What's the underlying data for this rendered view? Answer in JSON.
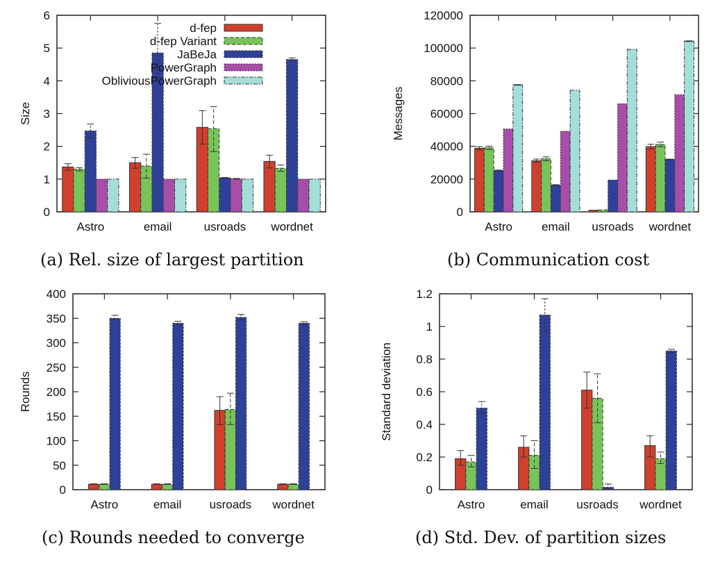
{
  "series_names": [
    "d-fep",
    "d-fep Variant",
    "JaBeJa",
    "PowerGraph",
    "ObliviousPowerGraph"
  ],
  "series_colors": [
    "#d0402c",
    "#78c45a",
    "#2f4098",
    "#a64ea8",
    "#a4ded8"
  ],
  "captions": {
    "a": "(a) Rel. size of largest partition",
    "b": "(b) Communication cost",
    "c": "(c) Rounds needed to converge",
    "d": "(d) Std. Dev. of partition sizes"
  },
  "chart_data": [
    {
      "id": "a",
      "type": "bar",
      "title": "Rel. size of largest partition",
      "xlabel": "",
      "ylabel": "Size",
      "ylim": [
        0,
        6
      ],
      "yticks": [
        0,
        1,
        2,
        3,
        4,
        5,
        6
      ],
      "ytick_labels": [
        "0",
        "1",
        "2",
        "3",
        "4",
        "5",
        "6"
      ],
      "categories": [
        "Astro",
        "email",
        "usroads",
        "wordnet"
      ],
      "legend": "top-right",
      "grid": false,
      "series": [
        {
          "name": "d-fep",
          "values": [
            1.37,
            1.5,
            2.58,
            1.54
          ],
          "err_low": [
            1.27,
            1.33,
            2.07,
            1.34
          ],
          "err_high": [
            1.47,
            1.66,
            3.09,
            1.73
          ]
        },
        {
          "name": "d-fep Variant",
          "values": [
            1.3,
            1.4,
            2.54,
            1.33
          ],
          "err_low": [
            1.25,
            1.03,
            1.84,
            1.24
          ],
          "err_high": [
            1.35,
            1.76,
            3.21,
            1.43
          ]
        },
        {
          "name": "JaBeJa",
          "values": [
            2.47,
            4.85,
            1.04,
            4.65
          ],
          "err_low": [
            2.25,
            4.1,
            1.03,
            4.62
          ],
          "err_high": [
            2.68,
            5.75,
            1.05,
            4.7
          ]
        },
        {
          "name": "PowerGraph",
          "values": [
            1.0,
            1.0,
            1.01,
            1.0
          ],
          "err_low": [
            1.0,
            1.0,
            1.0,
            1.0
          ],
          "err_high": [
            1.0,
            1.0,
            1.02,
            1.0
          ]
        },
        {
          "name": "ObliviousPowerGraph",
          "values": [
            1.0,
            1.0,
            1.0,
            1.0
          ],
          "err_low": [
            1.0,
            1.0,
            1.0,
            1.0
          ],
          "err_high": [
            1.0,
            1.0,
            1.0,
            1.0
          ]
        }
      ]
    },
    {
      "id": "b",
      "type": "bar",
      "title": "Communication cost",
      "xlabel": "",
      "ylabel": "Messages",
      "ylim": [
        0,
        120000
      ],
      "yticks": [
        0,
        20000,
        40000,
        60000,
        80000,
        100000,
        120000
      ],
      "ytick_labels": [
        "0",
        "20000",
        "40000",
        "60000",
        "80000",
        "100000",
        "120000"
      ],
      "categories": [
        "Astro",
        "email",
        "usroads",
        "wordnet"
      ],
      "legend": "none",
      "grid": false,
      "series": [
        {
          "name": "d-fep",
          "values": [
            38800,
            31200,
            1000,
            39800
          ],
          "err_low": [
            37800,
            30200,
            900,
            38300
          ],
          "err_high": [
            39800,
            32200,
            1100,
            41300
          ]
        },
        {
          "name": "d-fep Variant",
          "values": [
            39100,
            32400,
            1200,
            41200
          ],
          "err_low": [
            38100,
            31200,
            1100,
            39800
          ],
          "err_high": [
            40100,
            33600,
            1300,
            42600
          ]
        },
        {
          "name": "JaBeJa",
          "values": [
            25300,
            16300,
            19400,
            32000
          ],
          "err_low": [
            25100,
            16000,
            19300,
            31800
          ],
          "err_high": [
            25500,
            16600,
            19500,
            32200
          ]
        },
        {
          "name": "PowerGraph",
          "values": [
            50600,
            49200,
            66000,
            71500
          ],
          "err_low": [
            50500,
            49100,
            65900,
            71400
          ],
          "err_high": [
            50700,
            49300,
            66100,
            71600
          ]
        },
        {
          "name": "ObliviousPowerGraph",
          "values": [
            77500,
            74200,
            99200,
            104200
          ],
          "err_low": [
            77300,
            74100,
            99100,
            104000
          ],
          "err_high": [
            77700,
            74300,
            99300,
            104400
          ]
        }
      ]
    },
    {
      "id": "c",
      "type": "bar",
      "title": "Rounds needed to converge",
      "xlabel": "",
      "ylabel": "Rounds",
      "ylim": [
        0,
        400
      ],
      "yticks": [
        0,
        50,
        100,
        150,
        200,
        250,
        300,
        350,
        400
      ],
      "ytick_labels": [
        "0",
        "50",
        "100",
        "150",
        "200",
        "250",
        "300",
        "350",
        "400"
      ],
      "categories": [
        "Astro",
        "email",
        "usroads",
        "wordnet"
      ],
      "legend": "none",
      "grid": false,
      "series": [
        {
          "name": "d-fep",
          "values": [
            11,
            11,
            162,
            11
          ],
          "err_low": [
            11,
            11,
            133,
            11
          ],
          "err_high": [
            12,
            12,
            190,
            12
          ]
        },
        {
          "name": "d-fep Variant",
          "values": [
            11,
            11,
            164,
            11
          ],
          "err_low": [
            11,
            11,
            133,
            11
          ],
          "err_high": [
            12,
            12,
            197,
            12
          ]
        },
        {
          "name": "JaBeJa",
          "values": [
            350,
            340,
            352,
            340
          ],
          "err_low": [
            347,
            337,
            347,
            337
          ],
          "err_high": [
            356,
            344,
            358,
            343
          ]
        }
      ]
    },
    {
      "id": "d",
      "type": "bar",
      "title": "Std. Dev. of partition sizes",
      "xlabel": "",
      "ylabel": "Standard deviation",
      "ylim": [
        0,
        1.2
      ],
      "yticks": [
        0,
        0.2,
        0.4,
        0.6,
        0.8,
        1.0,
        1.2
      ],
      "ytick_labels": [
        "0",
        "0.2",
        "0.4",
        "0.6",
        "0.8",
        "1",
        "1.2"
      ],
      "categories": [
        "Astro",
        "email",
        "usroads",
        "wordnet"
      ],
      "legend": "none",
      "grid": false,
      "series": [
        {
          "name": "d-fep",
          "values": [
            0.19,
            0.26,
            0.61,
            0.27
          ],
          "err_low": [
            0.15,
            0.2,
            0.5,
            0.2
          ],
          "err_high": [
            0.24,
            0.33,
            0.72,
            0.33
          ]
        },
        {
          "name": "d-fep Variant",
          "values": [
            0.17,
            0.21,
            0.56,
            0.19
          ],
          "err_low": [
            0.14,
            0.13,
            0.41,
            0.16
          ],
          "err_high": [
            0.21,
            0.3,
            0.71,
            0.23
          ]
        },
        {
          "name": "JaBeJa",
          "values": [
            0.5,
            1.07,
            0.015,
            0.85
          ],
          "err_low": [
            0.47,
            0.97,
            0.005,
            0.84
          ],
          "err_high": [
            0.54,
            1.17,
            0.035,
            0.86
          ]
        }
      ]
    }
  ]
}
